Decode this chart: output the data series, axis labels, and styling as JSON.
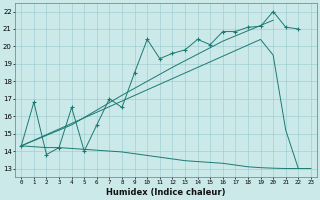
{
  "xlabel": "Humidex (Indice chaleur)",
  "bg_color": "#cce9ea",
  "grid_color": "#99c8cc",
  "line_color": "#1a7a72",
  "xlim": [
    -0.5,
    23.5
  ],
  "ylim": [
    12.5,
    22.5
  ],
  "xticks": [
    0,
    1,
    2,
    3,
    4,
    5,
    6,
    7,
    8,
    9,
    10,
    11,
    12,
    13,
    14,
    15,
    16,
    17,
    18,
    19,
    20,
    21,
    22,
    23
  ],
  "yticks": [
    13,
    14,
    15,
    16,
    17,
    18,
    19,
    20,
    21,
    22
  ],
  "line_jagged_x": [
    0,
    1,
    2,
    3,
    4,
    5,
    6,
    7,
    8,
    9,
    10,
    11,
    12,
    13,
    14,
    15,
    16,
    17,
    18,
    19,
    20,
    21,
    22
  ],
  "line_jagged_y": [
    14.3,
    16.8,
    13.8,
    14.2,
    16.5,
    14.0,
    15.5,
    17.0,
    16.5,
    18.5,
    20.4,
    19.3,
    19.6,
    19.8,
    20.4,
    20.1,
    20.85,
    20.85,
    21.1,
    21.15,
    22.0,
    21.1,
    21.0
  ],
  "line_diagonal_x": [
    0,
    4,
    8,
    12,
    16,
    19,
    20
  ],
  "line_diagonal_y": [
    14.3,
    15.5,
    17.2,
    18.8,
    20.3,
    21.2,
    21.5
  ],
  "line_envelope_x": [
    0,
    19,
    20,
    21,
    22
  ],
  "line_envelope_y": [
    14.3,
    20.4,
    19.5,
    15.2,
    13.0
  ],
  "line_flat_x": [
    0,
    1,
    2,
    3,
    4,
    5,
    6,
    7,
    8,
    9,
    10,
    11,
    12,
    13,
    14,
    15,
    16,
    17,
    18,
    19,
    20,
    21,
    22,
    23
  ],
  "line_flat_y": [
    14.3,
    14.25,
    14.2,
    14.2,
    14.15,
    14.1,
    14.05,
    14.0,
    13.95,
    13.85,
    13.75,
    13.65,
    13.55,
    13.45,
    13.4,
    13.35,
    13.3,
    13.2,
    13.1,
    13.05,
    13.02,
    13.0,
    13.0,
    13.0
  ]
}
